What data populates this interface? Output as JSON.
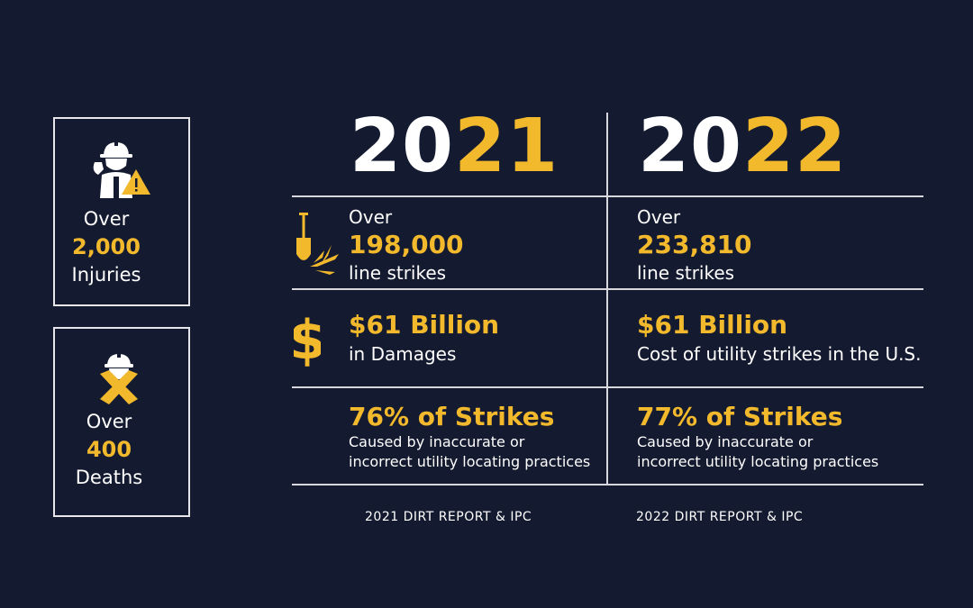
{
  "colors": {
    "background": "#141a30",
    "accent": "#f2b92d",
    "text": "#ffffff"
  },
  "left_boxes": {
    "injuries": {
      "icon": "worker-salute-icon",
      "prefix": "Over",
      "number": "2,000",
      "label": "Injuries"
    },
    "deaths": {
      "icon": "crossed-out-worker-icon",
      "prefix": "Over",
      "number": "400",
      "label": "Deaths"
    }
  },
  "years": [
    {
      "white": "20",
      "yellow": "21"
    },
    {
      "white": "20",
      "yellow": "22"
    }
  ],
  "rows": {
    "line_strikes": {
      "icon": "shovel-strike-icon",
      "y2021": {
        "prefix": "Over",
        "number": "198,000",
        "label": "line strikes"
      },
      "y2022": {
        "prefix": "Over",
        "number": "233,810",
        "label": "line strikes"
      }
    },
    "damages": {
      "icon": "dollar-icon",
      "y2021": {
        "headline": "$61 Billion",
        "label": "in Damages"
      },
      "y2022": {
        "headline": "$61 Billion",
        "label": "Cost of utility strikes in the U.S."
      }
    },
    "strikes_cause": {
      "y2021": {
        "headline": "76% of Strikes",
        "line1": "Caused by inaccurate or",
        "line2": "incorrect utility locating practices"
      },
      "y2022": {
        "headline": "77% of Strikes",
        "line1": "Caused by inaccurate or",
        "line2": "incorrect utility locating practices"
      }
    }
  },
  "sources": [
    "2021 DIRT REPORT & IPC",
    "2022 DIRT REPORT & IPC"
  ]
}
